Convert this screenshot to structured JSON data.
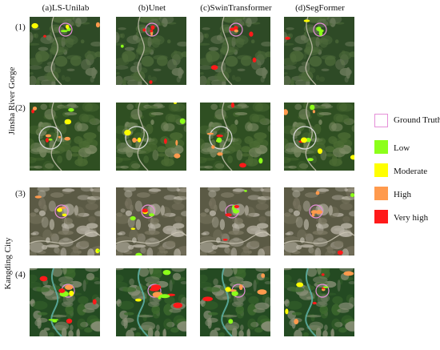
{
  "columns": [
    "(a)LS-Unilab",
    "(b)Unet",
    "(c)SwinTransformer",
    "(d)SegFormer"
  ],
  "rows": [
    "(1)",
    "(2)",
    "(3)",
    "(4)"
  ],
  "groups": [
    "Jinsha River Gorge",
    "Kangding City"
  ],
  "legend": [
    {
      "label": "Ground Truth",
      "color": "#e58fd8",
      "kind": "outline"
    },
    {
      "label": "Low",
      "color": "#8cff1a",
      "kind": "fill"
    },
    {
      "label": "Moderate",
      "color": "#ffff00",
      "kind": "fill"
    },
    {
      "label": "High",
      "color": "#ff9a4d",
      "kind": "fill"
    },
    {
      "label": "Very high",
      "color": "#ff1a1a",
      "kind": "fill"
    }
  ]
}
